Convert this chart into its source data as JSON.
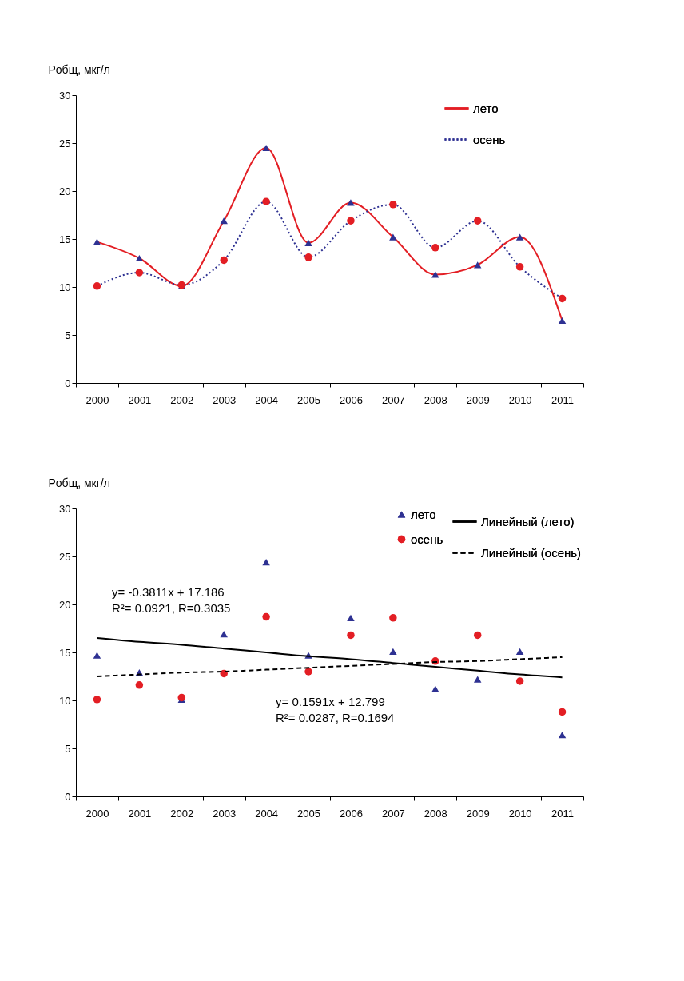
{
  "chart_data": [
    {
      "type": "line",
      "categories": [
        "2000",
        "2001",
        "2002",
        "2003",
        "2004",
        "2005",
        "2006",
        "2007",
        "2008",
        "2009",
        "2010",
        "2011"
      ],
      "ylabel": "Pобщ, мкг/л",
      "ylim": [
        0,
        30
      ],
      "yticks": [
        0,
        5,
        10,
        15,
        20,
        25,
        30
      ],
      "legend": "top right",
      "grid": false,
      "series": [
        {
          "name": "лето",
          "color": "#e31e24",
          "colors": [
            "#2e3192",
            "#2e3192",
            "#2e3192",
            "#2e3192",
            "#2e3192",
            "#2e3192",
            "#2e3192",
            "#2e3192",
            "#2e3192",
            "#2e3192",
            "#2e3192",
            "#2e3192"
          ],
          "marker": "triangle",
          "line_style": "solid",
          "values": [
            14.7,
            13.0,
            10.1,
            16.9,
            24.5,
            14.6,
            18.8,
            15.2,
            11.3,
            12.3,
            15.2,
            6.5
          ]
        },
        {
          "name": "осень",
          "color": "#2e3192",
          "colors": [
            "#e31e24",
            "#e31e24",
            "#e31e24",
            "#e31e24",
            "#e31e24",
            "#e31e24",
            "#e31e24",
            "#e31e24",
            "#e31e24",
            "#e31e24",
            "#e31e24",
            "#e31e24"
          ],
          "marker": "circle",
          "line_style": "dotted",
          "values": [
            10.1,
            11.5,
            10.2,
            12.8,
            18.9,
            13.1,
            16.9,
            18.6,
            14.1,
            16.9,
            12.1,
            8.8
          ]
        }
      ]
    },
    {
      "type": "scatter",
      "categories": [
        "2000",
        "2001",
        "2002",
        "2003",
        "2004",
        "2005",
        "2006",
        "2007",
        "2008",
        "2009",
        "2010",
        "2011"
      ],
      "ylabel": "Pобщ, мкг/л",
      "ylim": [
        0,
        30
      ],
      "yticks": [
        0,
        5,
        10,
        15,
        20,
        25,
        30
      ],
      "legend": "top right",
      "grid": false,
      "annotations": [
        "y= -0.3811x + 17.186\nR²= 0.0921, R=0.3035",
        "y= 0.1591x + 12.799\nR²= 0.0287, R=0.1694"
      ],
      "series": [
        {
          "name": "лето",
          "color": "#2e3192",
          "marker": "triangle",
          "values": [
            14.7,
            12.9,
            10.1,
            16.9,
            24.4,
            14.7,
            18.6,
            15.1,
            11.2,
            12.2,
            15.1,
            6.4
          ]
        },
        {
          "name": "осень",
          "color": "#e31e24",
          "marker": "circle",
          "values": [
            10.1,
            11.6,
            10.3,
            12.8,
            18.7,
            13.0,
            16.8,
            18.6,
            14.1,
            16.8,
            12.0,
            8.8
          ]
        },
        {
          "name": "Линейный (лето)",
          "type": "line",
          "color": "#000000",
          "line_style": "solid",
          "marker": "none",
          "values": [
            16.5,
            16.1,
            15.8,
            15.4,
            15.0,
            14.6,
            14.3,
            13.9,
            13.5,
            13.1,
            12.7,
            12.4
          ]
        },
        {
          "name": "Линейный (осень)",
          "type": "line",
          "color": "#000000",
          "line_style": "dashed",
          "marker": "none",
          "values": [
            12.5,
            12.7,
            12.9,
            13.0,
            13.2,
            13.4,
            13.6,
            13.8,
            14.0,
            14.1,
            14.3,
            14.5
          ]
        }
      ]
    }
  ]
}
